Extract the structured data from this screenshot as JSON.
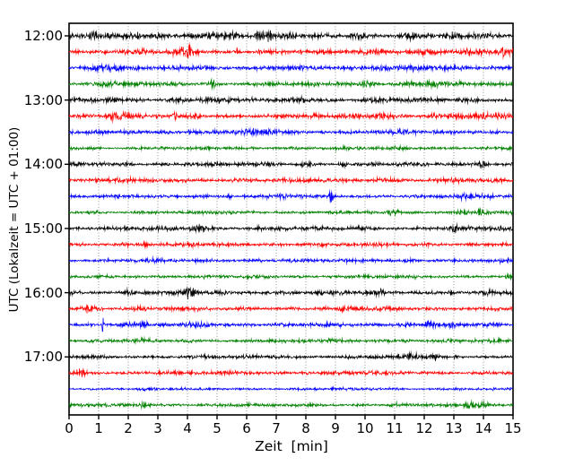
{
  "chart_data": {
    "type": "line",
    "subtype": "helicorder-dayplot-seismogram",
    "title": "",
    "xlabel": "Zeit  [min]",
    "ylabel": "UTC (Lokalzeit = UTC + 01:00)",
    "xlim": [
      0,
      15
    ],
    "minutes_per_line": 15,
    "n_traces": 24,
    "grid": {
      "vertical": true,
      "horizontal": false,
      "style": "dotted",
      "color": "#808080"
    },
    "legend_position": "none",
    "xtick_labels": [
      "0",
      "1",
      "2",
      "3",
      "4",
      "5",
      "6",
      "7",
      "8",
      "9",
      "10",
      "11",
      "12",
      "13",
      "14",
      "15"
    ],
    "ytick_labels": [
      "12:00",
      "13:00",
      "14:00",
      "15:00",
      "16:00",
      "17:00"
    ],
    "trace_color_cycle": [
      "#000000",
      "#ff0000",
      "#0000ff",
      "#008000"
    ],
    "traces": [
      {
        "color": "#000000",
        "base_amp": 2.2,
        "bursts": [
          [
            0.8,
            0.12,
            1.2
          ],
          [
            2.25,
            0.08,
            1.5
          ],
          [
            3.0,
            0.1,
            1.0
          ],
          [
            4.6,
            0.35,
            1.0
          ],
          [
            5.5,
            0.15,
            1.2
          ],
          [
            6.6,
            0.25,
            1.3
          ],
          [
            7.4,
            0.15,
            1.1
          ],
          [
            9.7,
            0.2,
            0.8
          ],
          [
            11.5,
            0.25,
            1.0
          ],
          [
            12.9,
            0.12,
            1.0
          ],
          [
            14.1,
            0.25,
            0.9
          ]
        ]
      },
      {
        "color": "#ff0000",
        "base_amp": 2.0,
        "bursts": [
          [
            2.5,
            0.1,
            0.7
          ],
          [
            3.9,
            0.3,
            1.8
          ],
          [
            4.05,
            0.04,
            3.5
          ],
          [
            5.7,
            0.04,
            1.8
          ],
          [
            6.45,
            0.04,
            1.8
          ],
          [
            10.6,
            0.5,
            0.8
          ],
          [
            12.1,
            0.3,
            0.7
          ],
          [
            13.6,
            0.3,
            0.7
          ],
          [
            14.8,
            0.25,
            1.4
          ]
        ]
      },
      {
        "color": "#0000ff",
        "base_amp": 1.9,
        "bursts": [
          [
            1.4,
            0.35,
            1.1
          ],
          [
            3.6,
            0.3,
            0.6
          ],
          [
            4.4,
            0.2,
            0.5
          ],
          [
            7.3,
            0.2,
            0.4
          ],
          [
            10.6,
            0.4,
            0.9
          ],
          [
            11.9,
            0.35,
            0.9
          ]
        ]
      },
      {
        "color": "#008000",
        "base_amp": 1.9,
        "bursts": [
          [
            1.2,
            0.25,
            0.8
          ],
          [
            2.1,
            0.1,
            0.6
          ],
          [
            3.7,
            0.1,
            0.5
          ],
          [
            4.85,
            0.1,
            1.6
          ],
          [
            6.8,
            0.1,
            0.5
          ],
          [
            10.0,
            0.2,
            1.0
          ],
          [
            11.5,
            0.3,
            0.7
          ],
          [
            12.3,
            0.2,
            0.9
          ]
        ]
      },
      {
        "color": "#000000",
        "base_amp": 2.1,
        "bursts": [
          [
            1.35,
            0.15,
            0.7
          ],
          [
            2.45,
            0.1,
            0.7
          ],
          [
            4.9,
            0.25,
            0.7
          ],
          [
            6.3,
            0.1,
            0.5
          ],
          [
            7.8,
            0.2,
            1.2
          ],
          [
            10.3,
            0.15,
            0.5
          ],
          [
            11.9,
            0.1,
            0.5
          ],
          [
            13.4,
            0.25,
            0.6
          ]
        ]
      },
      {
        "color": "#ff0000",
        "base_amp": 1.9,
        "bursts": [
          [
            1.6,
            0.25,
            1.8
          ],
          [
            3.55,
            0.05,
            1.8
          ],
          [
            4.3,
            0.15,
            0.7
          ],
          [
            8.3,
            0.1,
            0.5
          ],
          [
            9.6,
            0.25,
            0.6
          ],
          [
            10.6,
            0.4,
            0.9
          ],
          [
            13.2,
            0.4,
            1.0
          ],
          [
            14.5,
            0.3,
            1.1
          ]
        ]
      },
      {
        "color": "#0000ff",
        "base_amp": 1.9,
        "bursts": [
          [
            2.0,
            0.25,
            0.6
          ],
          [
            3.2,
            0.15,
            0.6
          ],
          [
            6.3,
            0.3,
            0.9
          ],
          [
            6.9,
            0.15,
            0.9
          ],
          [
            8.5,
            0.1,
            0.4
          ],
          [
            11.3,
            0.2,
            0.7
          ],
          [
            13.7,
            0.15,
            0.4
          ],
          [
            14.6,
            0.1,
            0.4
          ]
        ]
      },
      {
        "color": "#008000",
        "base_amp": 1.5,
        "bursts": [
          [
            3.1,
            0.15,
            0.5
          ],
          [
            7.6,
            0.1,
            0.4
          ],
          [
            11.2,
            0.15,
            0.5
          ],
          [
            12.9,
            0.1,
            0.4
          ],
          [
            14.7,
            0.1,
            0.5
          ]
        ]
      },
      {
        "color": "#000000",
        "base_amp": 1.8,
        "bursts": [
          [
            2.05,
            0.1,
            0.8
          ],
          [
            5.0,
            0.08,
            0.5
          ],
          [
            6.9,
            0.1,
            0.6
          ],
          [
            7.95,
            0.12,
            1.0
          ],
          [
            9.3,
            0.08,
            0.5
          ],
          [
            13.95,
            0.12,
            2.6
          ]
        ]
      },
      {
        "color": "#ff0000",
        "base_amp": 1.8,
        "bursts": [
          [
            1.8,
            0.3,
            0.6
          ],
          [
            3.5,
            0.1,
            0.4
          ],
          [
            5.4,
            0.15,
            0.5
          ],
          [
            7.2,
            0.1,
            0.4
          ],
          [
            10.5,
            0.3,
            0.5
          ],
          [
            13.0,
            0.3,
            0.4
          ]
        ]
      },
      {
        "color": "#0000ff",
        "base_amp": 1.7,
        "bursts": [
          [
            4.4,
            0.2,
            0.4
          ],
          [
            5.4,
            0.1,
            0.4
          ],
          [
            7.3,
            0.15,
            0.4
          ],
          [
            8.85,
            0.04,
            3.8
          ],
          [
            13.4,
            0.15,
            0.8
          ],
          [
            14.3,
            0.1,
            0.5
          ]
        ]
      },
      {
        "color": "#008000",
        "base_amp": 1.5,
        "bursts": [
          [
            5.5,
            0.1,
            0.4
          ],
          [
            8.85,
            0.08,
            0.7
          ],
          [
            10.85,
            0.15,
            1.6
          ],
          [
            13.3,
            0.15,
            1.8
          ],
          [
            13.9,
            0.12,
            1.4
          ]
        ]
      },
      {
        "color": "#000000",
        "base_amp": 1.8,
        "bursts": [
          [
            3.4,
            0.1,
            0.5
          ],
          [
            4.35,
            0.18,
            1.9
          ],
          [
            6.5,
            0.1,
            0.4
          ],
          [
            9.95,
            0.1,
            0.5
          ],
          [
            13.0,
            0.12,
            1.2
          ],
          [
            14.5,
            0.1,
            0.5
          ]
        ]
      },
      {
        "color": "#ff0000",
        "base_amp": 1.7,
        "bursts": [
          [
            1.9,
            0.1,
            0.4
          ],
          [
            2.55,
            0.05,
            2.2
          ],
          [
            4.3,
            0.12,
            0.6
          ],
          [
            12.1,
            0.05,
            1.2
          ]
        ]
      },
      {
        "color": "#0000ff",
        "base_amp": 1.6,
        "bursts": [
          [
            3.0,
            0.2,
            0.3
          ],
          [
            7.5,
            0.2,
            0.3
          ],
          [
            11.5,
            0.2,
            0.3
          ]
        ]
      },
      {
        "color": "#008000",
        "base_amp": 1.5,
        "bursts": [
          [
            2.3,
            0.1,
            0.4
          ],
          [
            9.0,
            0.15,
            0.3
          ],
          [
            14.85,
            0.12,
            1.6
          ]
        ]
      },
      {
        "color": "#000000",
        "base_amp": 1.9,
        "bursts": [
          [
            2.0,
            0.12,
            0.6
          ],
          [
            2.6,
            0.1,
            0.5
          ],
          [
            4.1,
            0.15,
            2.2
          ],
          [
            7.5,
            0.15,
            0.4
          ],
          [
            10.55,
            0.04,
            1.6
          ],
          [
            12.9,
            0.05,
            2.0
          ],
          [
            14.2,
            0.1,
            0.5
          ]
        ]
      },
      {
        "color": "#ff0000",
        "base_amp": 1.8,
        "bursts": [
          [
            0.65,
            0.2,
            1.3
          ],
          [
            2.3,
            0.1,
            0.7
          ],
          [
            6.9,
            0.1,
            0.5
          ],
          [
            9.2,
            0.25,
            0.4
          ],
          [
            12.0,
            0.2,
            0.4
          ]
        ]
      },
      {
        "color": "#0000ff",
        "base_amp": 1.7,
        "bursts": [
          [
            1.15,
            0.03,
            6.0
          ],
          [
            1.85,
            0.1,
            1.2
          ],
          [
            2.5,
            0.12,
            1.3
          ],
          [
            4.4,
            0.35,
            0.9
          ],
          [
            6.0,
            0.1,
            0.4
          ],
          [
            11.35,
            0.2,
            1.0
          ],
          [
            12.2,
            0.1,
            3.2
          ],
          [
            12.95,
            0.15,
            1.0
          ]
        ]
      },
      {
        "color": "#008000",
        "base_amp": 1.6,
        "bursts": [
          [
            2.5,
            0.1,
            0.5
          ],
          [
            8.9,
            0.12,
            0.5
          ],
          [
            12.5,
            0.2,
            0.3
          ]
        ]
      },
      {
        "color": "#000000",
        "base_amp": 1.6,
        "bursts": [
          [
            7.0,
            0.2,
            0.3
          ],
          [
            11.55,
            0.2,
            1.8
          ],
          [
            12.35,
            0.15,
            1.2
          ]
        ]
      },
      {
        "color": "#ff0000",
        "base_amp": 1.7,
        "bursts": [
          [
            0.45,
            0.15,
            1.6
          ],
          [
            3.0,
            0.08,
            0.6
          ],
          [
            8.0,
            0.2,
            0.3
          ]
        ]
      },
      {
        "color": "#0000ff",
        "base_amp": 1.2,
        "bursts": []
      },
      {
        "color": "#008000",
        "base_amp": 1.5,
        "bursts": [
          [
            2.55,
            0.1,
            1.4
          ],
          [
            11.0,
            0.12,
            0.7
          ],
          [
            13.6,
            0.15,
            1.7
          ],
          [
            14.05,
            0.12,
            1.3
          ]
        ]
      }
    ]
  }
}
